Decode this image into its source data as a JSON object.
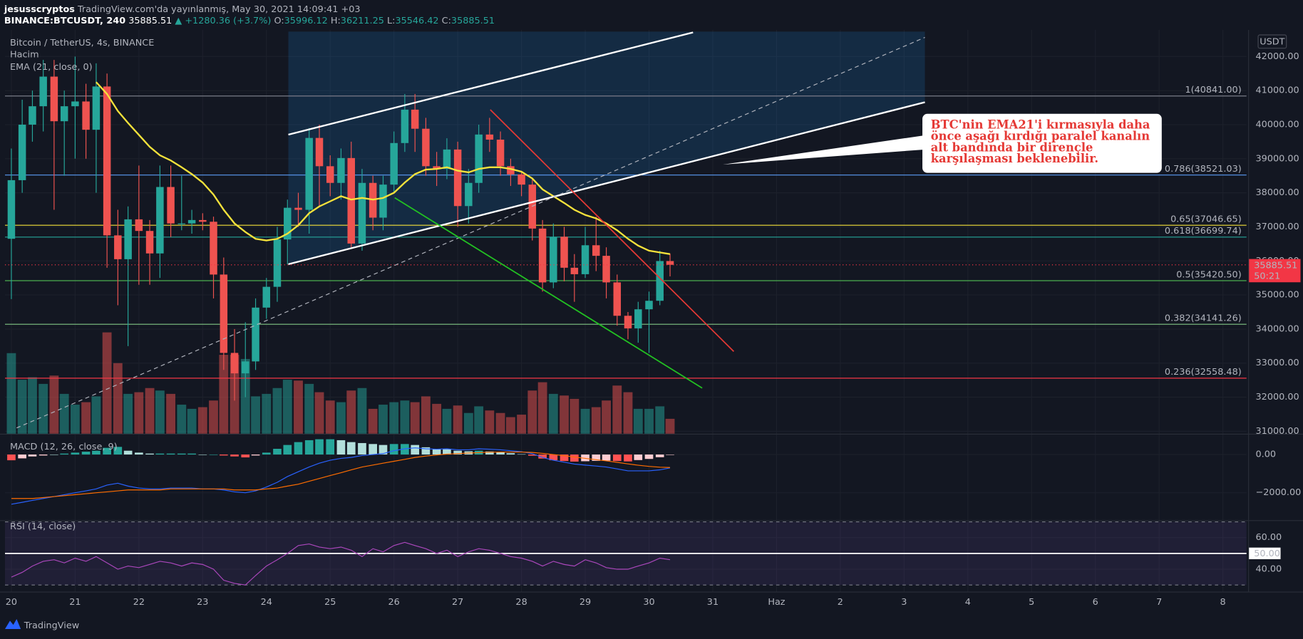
{
  "chart_data": {
    "type": "candlestick",
    "title": "Bitcoin / TetherUS, 4s, BINANCE",
    "author": "jesusscryptos",
    "published": "TradingView.com'da yayınlanmış, May 30, 2021 14:09:41 +03",
    "symbol": "BINANCE:BTCUSDT, 240",
    "change": "▲ +1280.36 (+3.7%)",
    "ohlc_labels": [
      "O:",
      "H:",
      "L:",
      "C:"
    ],
    "axis_unit": "USDT",
    "countdown": "50:21",
    "logo": "TradingView",
    "colors": {
      "up": "#26a69a",
      "down": "#ef5350"
    },
    "grid": true,
    "x": [
      20,
      20.17,
      20.33,
      20.5,
      20.67,
      20.83,
      21,
      21.17,
      21.33,
      21.5,
      21.67,
      21.83,
      22,
      22.17,
      22.33,
      22.5,
      22.67,
      22.83,
      23,
      23.17,
      23.33,
      23.5,
      23.67,
      23.83,
      24,
      24.17,
      24.33,
      24.5,
      24.67,
      24.83,
      25,
      25.17,
      25.33,
      25.5,
      25.67,
      25.83,
      26,
      26.17,
      26.33,
      26.5,
      26.67,
      26.83,
      27,
      27.17,
      27.33,
      27.5,
      27.67,
      27.83,
      28,
      28.17,
      28.33,
      28.5,
      28.67,
      28.83,
      29,
      29.17,
      29.33,
      29.5,
      29.67,
      29.83,
      30,
      30.17,
      30.33
    ],
    "xlim": [
      19.9,
      39.37
    ],
    "xticks": [
      20,
      21,
      22,
      23,
      24,
      25,
      26,
      27,
      28,
      29,
      30,
      31,
      {
        "value": 32,
        "label": "Haz"
      },
      {
        "value": 33,
        "label": "2"
      },
      {
        "value": 34,
        "label": "3"
      },
      {
        "value": 35,
        "label": "4"
      },
      {
        "value": 36,
        "label": "5"
      },
      {
        "value": 37,
        "label": "6"
      },
      {
        "value": 38,
        "label": "7"
      },
      {
        "value": 39,
        "label": "8"
      }
    ],
    "open": [
      36650,
      38370,
      40000,
      40540,
      41410,
      40100,
      40540,
      40680,
      39850,
      41120,
      36750,
      36050,
      37220,
      36880,
      36220,
      38170,
      37100,
      37100,
      37200,
      37150,
      35600,
      33300,
      32700,
      33050,
      34630,
      35240,
      36630,
      37560,
      37500,
      39610,
      38780,
      38290,
      39020,
      36510,
      38290,
      37270,
      38240,
      39460,
      40440,
      39880,
      38780,
      38700,
      39270,
      37610,
      38290,
      39710,
      39560,
      38780,
      38540,
      38240,
      36950,
      35370,
      36710,
      35800,
      35610,
      36460,
      36150,
      35370,
      34390,
      34020,
      34580,
      34830,
      35996.12
    ],
    "high": [
      39300,
      40730,
      41000,
      41900,
      41900,
      41000,
      42000,
      41200,
      41800,
      41500,
      37500,
      37600,
      38800,
      37200,
      38800,
      38800,
      38500,
      37500,
      37400,
      37300,
      36100,
      34000,
      34200,
      34900,
      35500,
      37000,
      37800,
      38000,
      39900,
      40000,
      39100,
      39300,
      39500,
      38700,
      38500,
      38500,
      39800,
      40900,
      40900,
      40200,
      39200,
      39600,
      39500,
      38700,
      40000,
      40200,
      39800,
      39000,
      38600,
      38400,
      37200,
      37100,
      37000,
      36200,
      37000,
      37300,
      36400,
      35600,
      34500,
      34800,
      35100,
      36300,
      36211.25
    ],
    "low": [
      34880,
      38000,
      39500,
      39800,
      37500,
      38500,
      39000,
      39000,
      38000,
      35800,
      34700,
      33500,
      35300,
      35300,
      35500,
      36700,
      36900,
      36800,
      36900,
      34900,
      32800,
      31900,
      32000,
      32800,
      34300,
      34800,
      35900,
      37000,
      36800,
      37600,
      37900,
      37800,
      36400,
      36300,
      36900,
      36900,
      38000,
      39200,
      39200,
      38500,
      38200,
      38400,
      37000,
      37100,
      38000,
      39200,
      38500,
      38200,
      37900,
      36600,
      35100,
      35200,
      35400,
      34800,
      35500,
      35700,
      34900,
      34100,
      33700,
      33600,
      33300,
      34700,
      35546.42
    ],
    "close": [
      38370,
      40000,
      40540,
      41410,
      40100,
      40540,
      40680,
      39850,
      41120,
      36750,
      36050,
      37220,
      36880,
      36220,
      38170,
      37100,
      37100,
      37200,
      37150,
      35600,
      33300,
      32700,
      33050,
      34630,
      35240,
      36630,
      37560,
      37500,
      39610,
      38780,
      38290,
      39020,
      36510,
      38290,
      37270,
      38240,
      39460,
      40440,
      39880,
      38780,
      38700,
      39270,
      37610,
      38290,
      39710,
      39560,
      38780,
      38540,
      38240,
      36950,
      35370,
      36710,
      35800,
      35610,
      36460,
      36150,
      35370,
      34390,
      34020,
      34580,
      34830,
      35996.12,
      35885.51
    ],
    "ylim": [
      30927,
      42683
    ],
    "yticks": [
      {
        "value": 31000,
        "label": "31000.00"
      },
      {
        "value": 32000,
        "label": "32000.00"
      },
      {
        "value": 33000,
        "label": "33000.00"
      },
      {
        "value": 34000,
        "label": "34000.00"
      },
      {
        "value": 35000,
        "label": "35000.00"
      },
      {
        "value": 36000,
        "label": "36000.00"
      },
      {
        "value": 37000,
        "label": "37000.00"
      },
      {
        "value": 38000,
        "label": "38000.00"
      },
      {
        "value": 39000,
        "label": "39000.00"
      },
      {
        "value": 40000,
        "label": "40000.00"
      },
      {
        "value": 41000,
        "label": "41000.00"
      },
      {
        "value": 42000,
        "label": "42000.00"
      }
    ],
    "volume": {
      "label": "Hacim",
      "values": [
        97,
        65,
        68,
        60,
        70,
        48,
        35,
        38,
        45,
        122,
        85,
        48,
        50,
        55,
        52,
        48,
        35,
        30,
        32,
        40,
        95,
        95,
        90,
        45,
        48,
        55,
        65,
        64,
        60,
        50,
        40,
        38,
        52,
        55,
        30,
        35,
        38,
        40,
        38,
        45,
        36,
        30,
        34,
        25,
        33,
        28,
        25,
        20,
        23,
        52,
        62,
        48,
        46,
        42,
        30,
        32,
        40,
        58,
        50,
        30,
        30,
        33,
        18
      ]
    },
    "ema": {
      "label": "EMA (21, close, 0)",
      "color": "#f5e23b",
      "values": [
        null,
        null,
        null,
        null,
        null,
        null,
        null,
        null,
        41250,
        40900,
        40400,
        40050,
        39700,
        39350,
        39100,
        38950,
        38750,
        38550,
        38300,
        37950,
        37500,
        37100,
        36850,
        36650,
        36600,
        36650,
        36800,
        37050,
        37400,
        37600,
        37750,
        37900,
        37800,
        37850,
        37800,
        37850,
        38000,
        38300,
        38550,
        38680,
        38700,
        38750,
        38650,
        38600,
        38700,
        38750,
        38750,
        38700,
        38620,
        38420,
        38100,
        37900,
        37700,
        37500,
        37350,
        37250,
        37100,
        36900,
        36650,
        36450,
        36300,
        36250,
        36200
      ]
    },
    "fib_levels": [
      {
        "label": "1(40841.00)",
        "value": 40841.0,
        "color": "#787b86"
      },
      {
        "label": "0.786(38521.03)",
        "value": 38521.03,
        "color": "#5b9cf6"
      },
      {
        "label": "0.65(37046.65)",
        "value": 37046.65,
        "color": "#f5e23b"
      },
      {
        "label": "0.618(36699.74)",
        "value": 36699.74,
        "color": "#26a69a"
      },
      {
        "label": "0.5(35420.50)",
        "value": 35420.5,
        "color": "#4caf50"
      },
      {
        "label": "0.382(34141.26)",
        "value": 34141.26,
        "color": "#81c784"
      },
      {
        "label": "0.236(32558.48)",
        "value": 32558.48,
        "color": "#f23645"
      }
    ],
    "annotation": [
      "BTC'nin EMA21'i kırmasıyla daha",
      "önce aşağı kırdığı paralel kanalın",
      "alt bandında bir dirençle",
      "karşılaşması beklenebilir."
    ],
    "macd": {
      "label": "MACD (12, 26, close, 9)",
      "ylim": [
        -3391,
        1000
      ],
      "yticks": [
        {
          "value": 0,
          "label": "0.00"
        },
        {
          "value": -2000,
          "label": "−2000.00"
        }
      ],
      "macd": {
        "color": "#2962ff",
        "values": [
          -2600,
          -2500,
          -2400,
          -2300,
          -2200,
          -2100,
          -2000,
          -1900,
          -1800,
          -1600,
          -1500,
          -1650,
          -1750,
          -1800,
          -1800,
          -1750,
          -1750,
          -1750,
          -1800,
          -1800,
          -1850,
          -1950,
          -2000,
          -1900,
          -1700,
          -1450,
          -1150,
          -900,
          -650,
          -450,
          -300,
          -200,
          -150,
          -50,
          0,
          50,
          200,
          300,
          350,
          300,
          280,
          300,
          250,
          250,
          300,
          280,
          250,
          200,
          150,
          50,
          -150,
          -300,
          -400,
          -500,
          -550,
          -600,
          -650,
          -750,
          -850,
          -850,
          -850,
          -800,
          -700
        ]
      },
      "signal": {
        "color": "#ff6d00",
        "values": [
          -2300,
          -2300,
          -2300,
          -2250,
          -2200,
          -2150,
          -2100,
          -2050,
          -2000,
          -1950,
          -1900,
          -1850,
          -1850,
          -1850,
          -1850,
          -1800,
          -1800,
          -1800,
          -1800,
          -1800,
          -1800,
          -1850,
          -1850,
          -1850,
          -1800,
          -1750,
          -1650,
          -1550,
          -1400,
          -1250,
          -1100,
          -950,
          -800,
          -650,
          -550,
          -450,
          -350,
          -250,
          -150,
          -80,
          -20,
          20,
          50,
          80,
          100,
          120,
          130,
          130,
          130,
          110,
          60,
          0,
          -60,
          -130,
          -200,
          -270,
          -330,
          -410,
          -490,
          -560,
          -620,
          -660,
          -680
        ]
      },
      "histogram": [
        -300,
        -200,
        -100,
        -50,
        0,
        50,
        100,
        150,
        200,
        350,
        400,
        200,
        100,
        50,
        50,
        50,
        50,
        50,
        0,
        0,
        -50,
        -100,
        -150,
        -50,
        100,
        300,
        500,
        650,
        750,
        800,
        800,
        750,
        650,
        600,
        550,
        500,
        550,
        550,
        500,
        380,
        300,
        280,
        200,
        170,
        200,
        160,
        120,
        70,
        20,
        -60,
        -210,
        -300,
        -340,
        -370,
        -350,
        -330,
        -320,
        -340,
        -360,
        -290,
        -230,
        -140,
        -20
      ]
    },
    "rsi": {
      "label": "RSI (14, close)",
      "color": "#ab47bc",
      "ylim": [
        26.3,
        71.05
      ],
      "yticks": [
        {
          "value": 60,
          "label": "60.00"
        },
        {
          "value": 50,
          "label": "50.00"
        },
        {
          "value": 40,
          "label": "40.00"
        }
      ],
      "band": [
        30,
        70
      ],
      "values": [
        35,
        38,
        42,
        45,
        46,
        44,
        47,
        45,
        48,
        44,
        40,
        42,
        41,
        43,
        45,
        44,
        42,
        44,
        43,
        40,
        33,
        31,
        30,
        36,
        42,
        46,
        50,
        55,
        56,
        54,
        53,
        54,
        52,
        48,
        53,
        51,
        55,
        57,
        55,
        53,
        50,
        52,
        48,
        51,
        53,
        52,
        50,
        48,
        47,
        45,
        42,
        45,
        43,
        42,
        46,
        44,
        41,
        40,
        40,
        42,
        44,
        47,
        46
      ]
    }
  }
}
